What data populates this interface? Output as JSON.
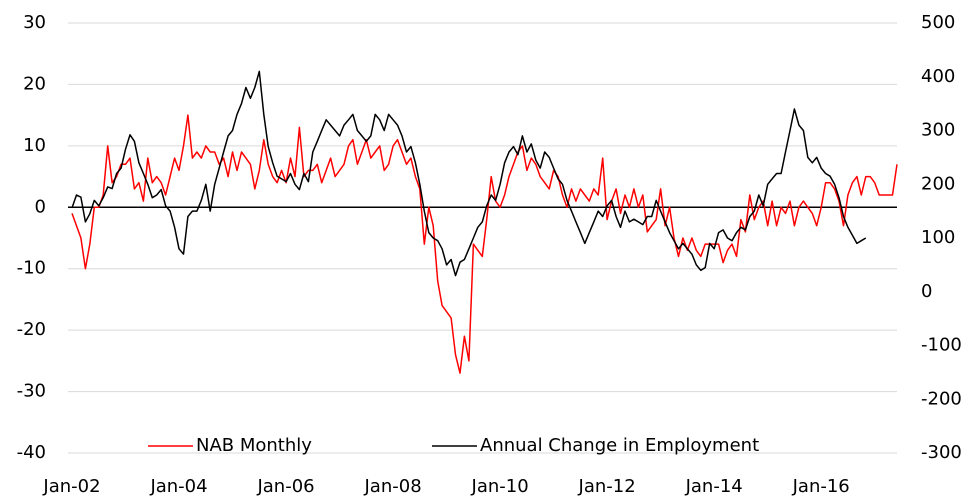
{
  "chart_data": {
    "type": "line",
    "categories": [
      "Jan-02",
      null,
      null,
      null,
      null,
      null,
      null,
      null,
      null,
      null,
      null,
      null,
      null,
      null,
      null,
      null,
      null,
      null,
      null,
      null,
      null,
      null,
      null,
      null,
      "Jan-04",
      null,
      null,
      null,
      null,
      null,
      null,
      null,
      null,
      null,
      null,
      null,
      null,
      null,
      null,
      null,
      null,
      null,
      null,
      null,
      null,
      null,
      null,
      null,
      "Jan-06",
      null,
      null,
      null,
      null,
      null,
      null,
      null,
      null,
      null,
      null,
      null,
      null,
      null,
      null,
      null,
      null,
      null,
      null,
      null,
      null,
      null,
      null,
      null,
      "Jan-08",
      null,
      null,
      null,
      null,
      null,
      null,
      null,
      null,
      null,
      null,
      null,
      null,
      null,
      null,
      null,
      null,
      null,
      null,
      null,
      null,
      null,
      null,
      null,
      "Jan-10",
      null,
      null,
      null,
      null,
      null,
      null,
      null,
      null,
      null,
      null,
      null,
      null,
      null,
      null,
      null,
      null,
      null,
      null,
      null,
      null,
      null,
      null,
      null,
      "Jan-12",
      null,
      null,
      null,
      null,
      null,
      null,
      null,
      null,
      null,
      null,
      null,
      null,
      null,
      null,
      null,
      null,
      null,
      null,
      null,
      null,
      null,
      null,
      null,
      "Jan-14",
      null,
      null,
      null,
      null,
      null,
      null,
      null,
      null,
      null,
      null,
      null,
      null,
      null,
      null,
      null,
      null,
      null,
      null,
      null,
      null,
      null,
      null,
      null,
      "Jan-16",
      null,
      null,
      null,
      null,
      null,
      null,
      null,
      null,
      null,
      null,
      null,
      null,
      null,
      null,
      null,
      null,
      null
    ],
    "series": [
      {
        "name": "NAB Monthly",
        "color": "#ff0000",
        "values": [
          -1,
          -3,
          -5,
          -10,
          -6,
          0,
          0,
          2,
          10,
          4,
          5,
          7,
          7,
          8,
          3,
          4,
          1,
          8,
          4,
          5,
          4,
          2,
          5,
          8,
          6,
          10,
          15,
          8,
          9,
          8,
          10,
          9,
          9,
          7,
          8,
          5,
          9,
          6,
          9,
          8,
          7,
          3,
          6,
          11,
          7,
          5,
          4,
          6,
          4,
          8,
          5,
          13,
          5,
          6,
          6,
          7,
          4,
          6,
          8,
          5,
          6,
          7,
          10,
          11,
          7,
          9,
          11,
          8,
          9,
          10,
          6,
          7,
          10,
          11,
          9,
          7,
          8,
          5,
          3,
          -6,
          0,
          -3,
          -12,
          -16,
          -17,
          -18,
          -24,
          -27,
          -21,
          -25,
          -6,
          -7,
          -8,
          -2,
          5,
          1,
          0,
          2,
          5,
          7,
          9,
          10,
          6,
          8,
          7,
          5,
          4,
          3,
          6,
          5,
          2,
          0,
          3,
          1,
          3,
          2,
          1,
          3,
          2,
          8,
          -2,
          1,
          3,
          -1,
          2,
          0,
          3,
          0,
          2,
          -4,
          -3,
          -2,
          3,
          -3,
          0,
          -5,
          -8,
          -5,
          -7,
          -5,
          -7,
          -8,
          -6,
          -6,
          -6,
          -6,
          -9,
          -7,
          -6,
          -8,
          -2,
          -4,
          2,
          -2,
          0,
          1,
          -3,
          1,
          -3,
          0,
          -1,
          1,
          -3,
          0,
          1,
          0,
          -1,
          -3,
          0,
          4,
          4,
          3,
          1,
          -3,
          2,
          4,
          5,
          2,
          5,
          5,
          4,
          2,
          2,
          2,
          2,
          7
        ]
      },
      {
        "name": "Annual Change in Employment",
        "color": "#000000",
        "axis": "y2",
        "values": [
          156,
          180,
          176,
          130,
          145,
          170,
          160,
          175,
          195,
          192,
          220,
          230,
          265,
          292,
          280,
          240,
          220,
          200,
          175,
          180,
          190,
          160,
          150,
          120,
          80,
          70,
          140,
          150,
          150,
          170,
          200,
          150,
          200,
          230,
          260,
          290,
          300,
          330,
          350,
          380,
          360,
          380,
          410,
          330,
          270,
          240,
          215,
          210,
          205,
          220,
          200,
          190,
          220,
          205,
          260,
          280,
          300,
          320,
          310,
          300,
          290,
          310,
          320,
          330,
          300,
          290,
          280,
          290,
          330,
          320,
          300,
          330,
          320,
          310,
          290,
          260,
          270,
          240,
          200,
          150,
          110,
          100,
          95,
          80,
          50,
          60,
          30,
          55,
          60,
          80,
          100,
          120,
          130,
          160,
          180,
          170,
          200,
          240,
          260,
          270,
          255,
          290,
          260,
          275,
          245,
          230,
          260,
          250,
          230,
          210,
          200,
          170,
          150,
          130,
          110,
          90,
          110,
          130,
          150,
          140,
          160,
          170,
          140,
          120,
          150,
          130,
          135,
          130,
          125,
          140,
          140,
          170,
          150,
          130,
          110,
          95,
          80,
          90,
          80,
          70,
          50,
          40,
          45,
          90,
          80,
          110,
          115,
          100,
          95,
          110,
          120,
          115,
          140,
          150,
          180,
          160,
          200,
          210,
          220,
          220,
          260,
          300,
          340,
          310,
          300,
          250,
          240,
          250,
          230,
          220,
          215,
          200,
          175,
          140,
          120,
          105,
          90,
          95,
          100,
          null,
          null,
          null,
          null,
          null,
          null,
          null
        ]
      }
    ],
    "ylim": [
      -40,
      30
    ],
    "yticks": [
      -40,
      -30,
      -20,
      -10,
      0,
      10,
      20,
      30
    ],
    "y2lim": [
      -300,
      500
    ],
    "y2ticks": [
      -300,
      -200,
      -100,
      0,
      100,
      200,
      300,
      400,
      500
    ],
    "grid": true,
    "legend": "bottom"
  }
}
